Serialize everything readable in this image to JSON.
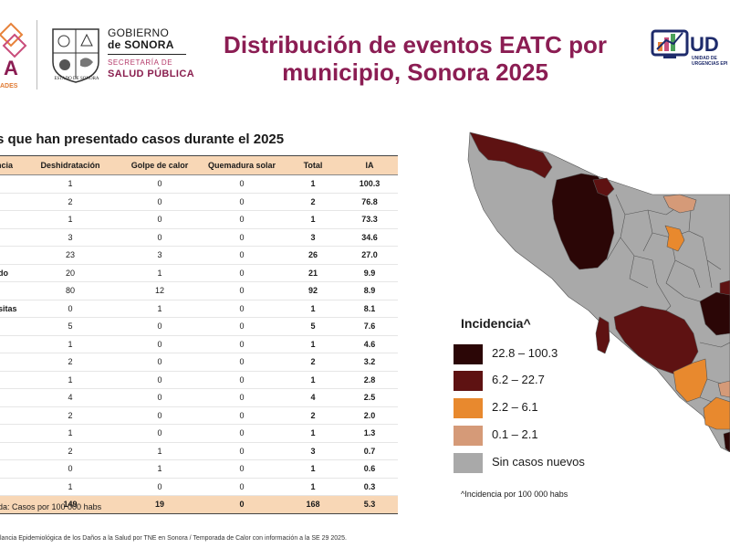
{
  "header": {
    "left_logo_fragment": "A",
    "left_logo_sub": "ADES",
    "seal_caption": "ESTADO DE SONORA",
    "gov_line1": "GOBIERNO",
    "gov_line2": "de SONORA",
    "gov_line3": "SECRETARÍA DE",
    "gov_line4": "SALUD PÚBLICA",
    "title_line1": "Distribución de eventos EATC por",
    "title_line2": "municipio, Sonora 2025",
    "right_logo_text": "UD",
    "right_logo_sub1": "UNIDAD DE",
    "right_logo_sub2": "URGENCIAS EPI"
  },
  "table": {
    "subtitle": "s que han presentado casos durante el 2025",
    "headers": [
      "ncia",
      "Deshidratación",
      "Golpe de calor",
      "Quemadura solar",
      "Total",
      "IA"
    ],
    "rows": [
      [
        "",
        "1",
        "0",
        "0",
        "1",
        "100.3"
      ],
      [
        "",
        "2",
        "0",
        "0",
        "2",
        "76.8"
      ],
      [
        "",
        "1",
        "0",
        "0",
        "1",
        "73.3"
      ],
      [
        "",
        "3",
        "0",
        "0",
        "3",
        "34.6"
      ],
      [
        "",
        "23",
        "3",
        "0",
        "26",
        "27.0"
      ],
      [
        "do",
        "20",
        "1",
        "0",
        "21",
        "9.9"
      ],
      [
        "",
        "80",
        "12",
        "0",
        "92",
        "8.9"
      ],
      [
        "sitas",
        "0",
        "1",
        "0",
        "1",
        "8.1"
      ],
      [
        "",
        "5",
        "0",
        "0",
        "5",
        "7.6"
      ],
      [
        "",
        "1",
        "0",
        "0",
        "1",
        "4.6"
      ],
      [
        "",
        "2",
        "0",
        "0",
        "2",
        "3.2"
      ],
      [
        "",
        "1",
        "0",
        "0",
        "1",
        "2.8"
      ],
      [
        "",
        "4",
        "0",
        "0",
        "4",
        "2.5"
      ],
      [
        "",
        "2",
        "0",
        "0",
        "2",
        "2.0"
      ],
      [
        "",
        "1",
        "0",
        "0",
        "1",
        "1.3"
      ],
      [
        "",
        "2",
        "1",
        "0",
        "3",
        "0.7"
      ],
      [
        "",
        "0",
        "1",
        "0",
        "1",
        "0.6"
      ],
      [
        "",
        "1",
        "0",
        "0",
        "1",
        "0.3"
      ]
    ],
    "total_row": [
      "",
      "149",
      "19",
      "0",
      "168",
      "5.3"
    ],
    "footnote": "da: Casos por 100 000 habs",
    "source": "lancia Epidemiológica de los Daños a la Salud por TNE en Sonora / Temporada de Calor con información a la SE 29 2025."
  },
  "legend": {
    "title": "Incidencia^",
    "items": [
      {
        "label": "22.8 – 100.3",
        "color": "#2b0606"
      },
      {
        "label": "6.2 – 22.7",
        "color": "#5e1212"
      },
      {
        "label": "2.2 – 6.1",
        "color": "#e8892e"
      },
      {
        "label": "0.1 – 2.1",
        "color": "#d59a78"
      },
      {
        "label": "Sin casos nuevos",
        "color": "#a9a9a9"
      }
    ],
    "note": "^Incidencia por 100 000 habs"
  },
  "colors": {
    "title": "#8b1d53",
    "table_header_bg": "#f8d7b6",
    "map_gray": "#a9a9a9",
    "map_border": "#555555"
  }
}
